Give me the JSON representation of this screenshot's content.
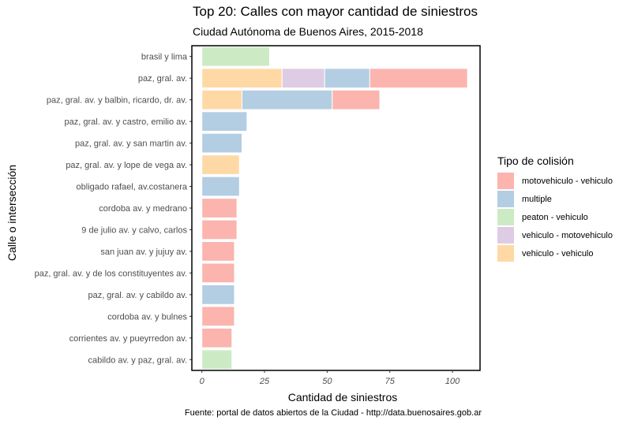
{
  "chart_data": {
    "type": "bar",
    "orientation": "horizontal",
    "stacked": true,
    "title": "Top 20: Calles con mayor cantidad de siniestros",
    "subtitle": "Ciudad Autónoma de Buenos Aires, 2015-2018",
    "xlabel": "Cantidad de siniestros",
    "ylabel": "Calle o intersección",
    "caption": "Fuente: portal de datos abiertos de la Ciudad - http://data.buenosaires.gob.ar",
    "xlim": [
      -4,
      111
    ],
    "x_ticks": [
      0,
      25,
      50,
      75,
      100
    ],
    "grid": false,
    "legend_title": "Tipo de colisión",
    "legend_position": "right",
    "categories": [
      "brasil y lima",
      "paz, gral. av.",
      "paz, gral. av. y balbin, ricardo, dr. av.",
      "paz, gral. av. y castro, emilio av.",
      "paz, gral. av. y san martin av.",
      "paz, gral. av. y lope de vega av.",
      "obligado rafael, av.costanera",
      "cordoba av. y medrano",
      "9 de julio av. y calvo, carlos",
      "san juan av. y jujuy av.",
      "paz, gral. av. y de los constituyentes av.",
      "paz, gral. av. y cabildo av.",
      "cordoba av. y bulnes",
      "corrientes av. y pueyrredon av.",
      "cabildo av. y paz, gral. av."
    ],
    "series": [
      {
        "name": "motovehiculo - vehiculo",
        "color": "#fbb4ae",
        "values": [
          0,
          39,
          19,
          0,
          0,
          0,
          0,
          14,
          14,
          13,
          13,
          0,
          13,
          12,
          0
        ]
      },
      {
        "name": "multiple",
        "color": "#b3cde3",
        "values": [
          0,
          18,
          36,
          18,
          16,
          0,
          15,
          0,
          0,
          0,
          0,
          13,
          0,
          0,
          0
        ]
      },
      {
        "name": "peaton - vehiculo",
        "color": "#ccebc5",
        "values": [
          27,
          0,
          0,
          0,
          0,
          0,
          0,
          0,
          0,
          0,
          0,
          0,
          0,
          0,
          12
        ]
      },
      {
        "name": "vehiculo - motovehiculo",
        "color": "#decbe4",
        "values": [
          0,
          17,
          0,
          0,
          0,
          0,
          0,
          0,
          0,
          0,
          0,
          0,
          0,
          0,
          0
        ]
      },
      {
        "name": "vehiculo - vehiculo",
        "color": "#fed9a6",
        "values": [
          0,
          32,
          16,
          0,
          0,
          15,
          0,
          0,
          0,
          0,
          0,
          0,
          0,
          0,
          0
        ]
      }
    ],
    "stack_order_left_to_right": [
      "vehiculo - vehiculo",
      "vehiculo - motovehiculo",
      "peaton - vehiculo",
      "multiple",
      "motovehiculo - vehiculo"
    ]
  }
}
